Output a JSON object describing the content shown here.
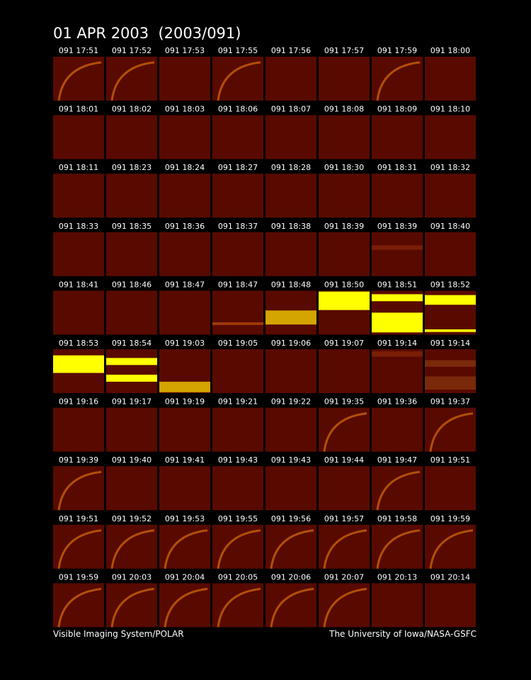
{
  "header": {
    "title": "01 APR 2003  (2003/091)"
  },
  "panels": [
    {
      "label": "091 17:51"
    },
    {
      "label": "091 17:52"
    },
    {
      "label": "091 17:53"
    },
    {
      "label": "091 17:55"
    },
    {
      "label": "091 17:56"
    },
    {
      "label": "091 17:57"
    },
    {
      "label": "091 17:59"
    },
    {
      "label": "091 18:00"
    },
    {
      "label": "091 18:01"
    },
    {
      "label": "091 18:02"
    },
    {
      "label": "091 18:03"
    },
    {
      "label": "091 18:06"
    },
    {
      "label": "091 18:07"
    },
    {
      "label": "091 18:08"
    },
    {
      "label": "091 18:09"
    },
    {
      "label": "091 18:10"
    },
    {
      "label": "091 18:11"
    },
    {
      "label": "091 18:23"
    },
    {
      "label": "091 18:24"
    },
    {
      "label": "091 18:27"
    },
    {
      "label": "091 18:28"
    },
    {
      "label": "091 18:30"
    },
    {
      "label": "091 18:31"
    },
    {
      "label": "091 18:32"
    },
    {
      "label": "091 18:33"
    },
    {
      "label": "091 18:35"
    },
    {
      "label": "091 18:36"
    },
    {
      "label": "091 18:37"
    },
    {
      "label": "091 18:38"
    },
    {
      "label": "091 18:39"
    },
    {
      "label": "091 18:39"
    },
    {
      "label": "091 18:40"
    },
    {
      "label": "091 18:41"
    },
    {
      "label": "091 18:46"
    },
    {
      "label": "091 18:47"
    },
    {
      "label": "091 18:47"
    },
    {
      "label": "091 18:48"
    },
    {
      "label": "091 18:50"
    },
    {
      "label": "091 18:51"
    },
    {
      "label": "091 18:52"
    },
    {
      "label": "091 18:53"
    },
    {
      "label": "091 18:54"
    },
    {
      "label": "091 19:03"
    },
    {
      "label": "091 19:05"
    },
    {
      "label": "091 19:06"
    },
    {
      "label": "091 19:07"
    },
    {
      "label": "091 19:14"
    },
    {
      "label": "091 19:14"
    },
    {
      "label": "091 19:16"
    },
    {
      "label": "091 19:17"
    },
    {
      "label": "091 19:19"
    },
    {
      "label": "091 19:21"
    },
    {
      "label": "091 19:22"
    },
    {
      "label": "091 19:35"
    },
    {
      "label": "091 19:36"
    },
    {
      "label": "091 19:37"
    },
    {
      "label": "091 19:39"
    },
    {
      "label": "091 19:40"
    },
    {
      "label": "091 19:41"
    },
    {
      "label": "091 19:43"
    },
    {
      "label": "091 19:43"
    },
    {
      "label": "091 19:44"
    },
    {
      "label": "091 19:47"
    },
    {
      "label": "091 19:51"
    },
    {
      "label": "091 19:51"
    },
    {
      "label": "091 19:52"
    },
    {
      "label": "091 19:53"
    },
    {
      "label": "091 19:55"
    },
    {
      "label": "091 19:56"
    },
    {
      "label": "091 19:57"
    },
    {
      "label": "091 19:58"
    },
    {
      "label": "091 19:59"
    },
    {
      "label": "091 19:59"
    },
    {
      "label": "091 20:03"
    },
    {
      "label": "091 20:04"
    },
    {
      "label": "091 20:05"
    },
    {
      "label": "091 20:06"
    },
    {
      "label": "091 20:07"
    },
    {
      "label": "091 20:13"
    },
    {
      "label": "091 20:14"
    }
  ],
  "footer": {
    "left": "Visible Imaging System/POLAR",
    "right": "The University of Iowa/NASA-GSFC"
  }
}
